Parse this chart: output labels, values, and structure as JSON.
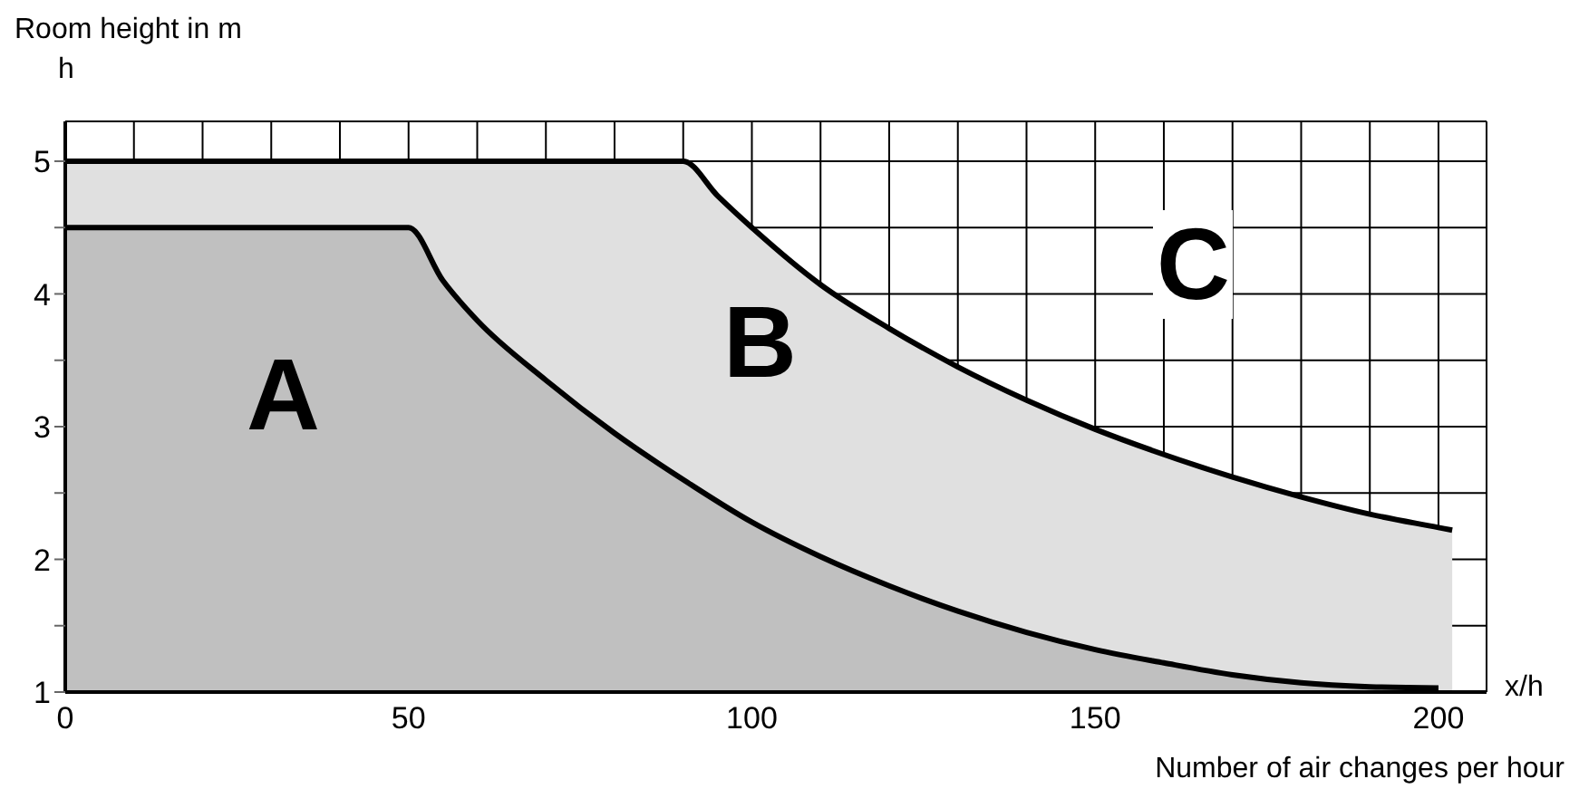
{
  "chart_data": {
    "type": "area",
    "xlabel": "Number of air changes per hour",
    "ylabel": "Room height in m",
    "xlim": [
      0,
      207
    ],
    "ylim": [
      1,
      5.3
    ],
    "xticks": [
      0,
      {
        "value": 10,
        "label": null
      },
      {
        "value": 20,
        "label": null
      },
      {
        "value": 30,
        "label": null
      },
      {
        "value": 40,
        "label": null
      },
      50,
      {
        "value": 60,
        "label": null
      },
      {
        "value": 70,
        "label": null
      },
      {
        "value": 80,
        "label": null
      },
      {
        "value": 90,
        "label": null
      },
      100,
      {
        "value": 110,
        "label": null
      },
      {
        "value": 120,
        "label": null
      },
      {
        "value": 130,
        "label": null
      },
      {
        "value": 140,
        "label": null
      },
      150,
      {
        "value": 160,
        "label": null
      },
      {
        "value": 170,
        "label": null
      },
      {
        "value": 180,
        "label": null
      },
      {
        "value": 190,
        "label": null
      },
      200
    ],
    "yticks": [
      1,
      {
        "value": 1.5,
        "label": null
      },
      2,
      {
        "value": 2.5,
        "label": null
      },
      3,
      {
        "value": 3.5,
        "label": null
      },
      4,
      {
        "value": 4.5,
        "label": null
      },
      5
    ],
    "grid": true,
    "legend": false,
    "marker": "none",
    "line_style": "solid",
    "series": [
      {
        "color": "#e0e0e0",
        "x": [
          0,
          90,
          95,
          100,
          110,
          120,
          130,
          140,
          150,
          160,
          170,
          180,
          190,
          200,
          202
        ],
        "values": [
          5,
          5,
          4.74,
          4.5,
          4.07,
          3.74,
          3.45,
          3.2,
          2.98,
          2.79,
          2.62,
          2.47,
          2.34,
          2.24,
          2.22
        ]
      },
      {
        "color": "#c0c0c0",
        "x": [
          0,
          50,
          55,
          60,
          70,
          80,
          90,
          100,
          110,
          120,
          130,
          140,
          150,
          160,
          170,
          180,
          190,
          200
        ],
        "values": [
          4.5,
          4.5,
          4.1,
          3.8,
          3.35,
          2.95,
          2.6,
          2.28,
          2.02,
          1.8,
          1.61,
          1.45,
          1.32,
          1.22,
          1.13,
          1.07,
          1.04,
          1.03
        ]
      }
    ],
    "annotations": [
      "A",
      "B",
      "C",
      "h",
      "x/h"
    ]
  }
}
